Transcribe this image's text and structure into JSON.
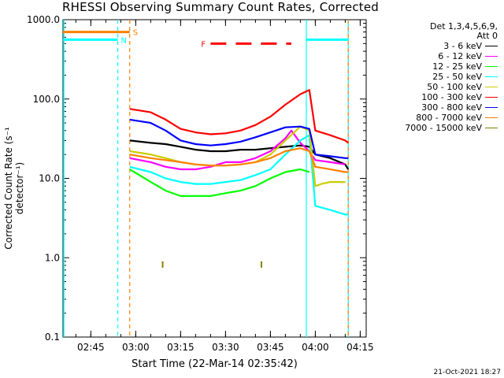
{
  "chart_data": {
    "type": "line",
    "title": "RHESSI Observing Summary Count Rates, Corrected",
    "xlabel": "Start Time (22-Mar-14 02:35:42)",
    "ylabel": "Corrected Count Rate (s⁻¹ detector⁻¹)",
    "yscale": "log",
    "ylim": [
      0.1,
      1000
    ],
    "yticks": [
      "0.1",
      "1.0",
      "10.0",
      "100.0",
      "1000.0"
    ],
    "xlim": [
      "02:35:42",
      "04:17:00"
    ],
    "xticks": [
      "02:45",
      "03:00",
      "03:15",
      "03:30",
      "03:45",
      "04:00",
      "04:15"
    ],
    "legend_header": [
      "Det 1,3,4,5,6,9,",
      "Att 0"
    ],
    "series": [
      {
        "name": "3 - 6 keV",
        "color": "#000000",
        "x": [
          "02:58",
          "03:05",
          "03:10",
          "03:15",
          "03:20",
          "03:25",
          "03:30",
          "03:35",
          "03:40",
          "03:45",
          "03:50",
          "03:55",
          "03:58",
          "04:00",
          "04:05",
          "04:10",
          "04:11"
        ],
        "y": [
          30,
          28,
          27,
          25,
          23,
          22,
          22,
          23,
          23,
          24,
          25,
          26,
          25,
          20,
          18,
          15,
          13
        ]
      },
      {
        "name": "6 - 12 keV",
        "color": "#ff00ff",
        "x": [
          "02:58",
          "03:05",
          "03:10",
          "03:15",
          "03:20",
          "03:25",
          "03:30",
          "03:35",
          "03:40",
          "03:45",
          "03:50",
          "03:52",
          "03:55",
          "03:58",
          "04:00",
          "04:05",
          "04:10"
        ],
        "y": [
          18,
          16,
          14,
          13,
          13,
          14,
          16,
          16,
          18,
          22,
          32,
          40,
          28,
          22,
          17,
          16,
          15
        ]
      },
      {
        "name": "12 - 25 keV",
        "color": "#00ff00",
        "x": [
          "02:58",
          "03:05",
          "03:10",
          "03:15",
          "03:20",
          "03:25",
          "03:30",
          "03:35",
          "03:40",
          "03:45",
          "03:50",
          "03:55",
          "03:58"
        ],
        "y": [
          13,
          9,
          7,
          6,
          6,
          6,
          6.5,
          7,
          8,
          10,
          12,
          13,
          12
        ]
      },
      {
        "name": "25 - 50 keV",
        "color": "#00ffff",
        "x": [
          "02:58",
          "03:05",
          "03:10",
          "03:15",
          "03:20",
          "03:25",
          "03:30",
          "03:35",
          "03:40",
          "03:45",
          "03:50",
          "03:55",
          "03:58",
          "04:00",
          "04:05",
          "04:10",
          "04:11"
        ],
        "y": [
          14,
          12,
          10,
          9,
          8.5,
          8.5,
          9,
          9.5,
          11,
          13,
          20,
          30,
          35,
          4.5,
          4.0,
          3.5,
          3.5
        ]
      },
      {
        "name": "50 - 100 keV",
        "color": "#cccc00",
        "x": [
          "02:58",
          "03:05",
          "03:10",
          "03:15",
          "03:20",
          "03:25",
          "03:30",
          "03:35",
          "03:40",
          "03:45",
          "03:50",
          "03:55",
          "03:58",
          "04:00",
          "04:02",
          "04:05",
          "04:10"
        ],
        "y": [
          22,
          20,
          18,
          16,
          15,
          14.5,
          14.5,
          15,
          16,
          20,
          30,
          45,
          40,
          8,
          8.5,
          9,
          9
        ]
      },
      {
        "name": "100 - 300 keV",
        "color": "#ff0000",
        "x": [
          "02:58",
          "03:05",
          "03:10",
          "03:15",
          "03:20",
          "03:25",
          "03:30",
          "03:35",
          "03:40",
          "03:45",
          "03:50",
          "03:55",
          "03:58",
          "04:00",
          "04:05",
          "04:10",
          "04:11"
        ],
        "y": [
          75,
          68,
          55,
          42,
          38,
          36,
          37,
          40,
          47,
          60,
          85,
          115,
          130,
          40,
          35,
          30,
          28
        ]
      },
      {
        "name": "300 - 800 keV",
        "color": "#0000ff",
        "x": [
          "02:58",
          "03:05",
          "03:10",
          "03:15",
          "03:20",
          "03:25",
          "03:30",
          "03:35",
          "03:40",
          "03:45",
          "03:50",
          "03:55",
          "03:58",
          "04:00",
          "04:05",
          "04:10",
          "04:11"
        ],
        "y": [
          55,
          50,
          40,
          30,
          27,
          26,
          27,
          29,
          33,
          38,
          44,
          45,
          42,
          20,
          19,
          18,
          18
        ]
      },
      {
        "name": "800 - 7000 keV",
        "color": "#ff8000",
        "x": [
          "02:58",
          "03:05",
          "03:10",
          "03:15",
          "03:20",
          "03:25",
          "03:30",
          "03:35",
          "03:40",
          "03:45",
          "03:50",
          "03:55",
          "03:58",
          "04:00",
          "04:05",
          "04:10",
          "04:11"
        ],
        "y": [
          20,
          18,
          17,
          16,
          15,
          14.5,
          14.5,
          15,
          16,
          18,
          22,
          24,
          22,
          14,
          13,
          12,
          12
        ]
      },
      {
        "name": "7000 - 15000 keV",
        "color": "#808000",
        "x": [
          "03:09",
          "03:09",
          "03:42",
          "03:42"
        ],
        "y": [
          0.75,
          0.9,
          0.75,
          0.9
        ]
      }
    ],
    "markers": [
      {
        "label": "S",
        "color": "#ff8000",
        "x_start": "02:35:42",
        "x_end": "02:58",
        "y": 700
      },
      {
        "label": "N",
        "color": "#00ffff",
        "x_start": "02:35:42",
        "x_end": "02:54",
        "y": 560
      },
      {
        "label": "",
        "color": "#00ffff",
        "x_start": "03:57",
        "x_end": "04:11",
        "y": 560
      },
      {
        "label": "F",
        "color": "#ff0000",
        "x_start": "03:25",
        "x_end": "03:52",
        "y": 500
      }
    ],
    "vlines": [
      {
        "x": "02:54",
        "color": "#00ffff",
        "style": "dashed"
      },
      {
        "x": "02:58",
        "color": "#ff8000",
        "style": "dashed"
      },
      {
        "x": "03:57",
        "color": "#00ffff",
        "style": "solid"
      },
      {
        "x": "04:11",
        "color": "#00ffff",
        "style": "solid"
      },
      {
        "x": "04:11",
        "color": "#ff8000",
        "style": "dashed"
      }
    ],
    "timestamp": "21-Oct-2021 18:27"
  }
}
